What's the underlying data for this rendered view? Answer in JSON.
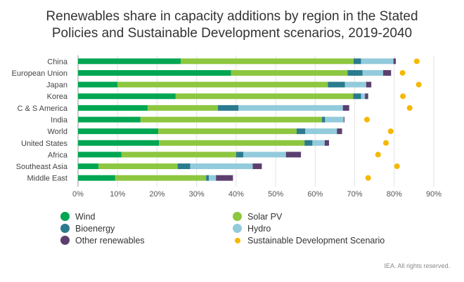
{
  "title_line1": "Renewables share in capacity additions by region in the Stated",
  "title_line2": "Policies and Sustainable Development scenarios, 2019-2040",
  "credit": "IEA. All rights reserved.",
  "colors": {
    "Wind": "#00a651",
    "Solar PV": "#8dc63f",
    "Bioenergy": "#2a7b8e",
    "Hydro": "#92cbdb",
    "Other renewables": "#5c3f6f",
    "Sustainable Development Scenario": "#f5b800"
  },
  "legend": [
    {
      "label": "Wind",
      "color": "#00a651",
      "marker": "circle"
    },
    {
      "label": "Solar PV",
      "color": "#8dc63f",
      "marker": "circle"
    },
    {
      "label": "Bioenergy",
      "color": "#2a7b8e",
      "marker": "circle"
    },
    {
      "label": "Hydro",
      "color": "#92cbdb",
      "marker": "circle"
    },
    {
      "label": "Other renewables",
      "color": "#5c3f6f",
      "marker": "circle"
    },
    {
      "label": "Sustainable Development Scenario",
      "color": "#f5b800",
      "marker": "dot"
    }
  ],
  "chart_data": {
    "type": "bar",
    "orientation": "horizontal",
    "stacked": true,
    "title": "Renewables share in capacity additions by region in the Stated Policies and Sustainable Development scenarios, 2019-2040",
    "categories": [
      "China",
      "European Union",
      "Japan",
      "Korea",
      "C & S America",
      "India",
      "World",
      "United States",
      "Africa",
      "Southeast Asia",
      "Middle East"
    ],
    "series": [
      {
        "name": "Wind",
        "values": [
          26.0,
          38.7,
          10.0,
          24.7,
          17.6,
          15.8,
          20.3,
          20.5,
          11.0,
          5.2,
          9.4
        ]
      },
      {
        "name": "Solar PV",
        "values": [
          43.7,
          29.5,
          53.2,
          44.9,
          17.8,
          45.9,
          35.0,
          36.8,
          29.0,
          20.0,
          23.0
        ]
      },
      {
        "name": "Bioenergy",
        "values": [
          1.9,
          3.8,
          4.3,
          2.0,
          5.2,
          0.8,
          2.2,
          2.0,
          1.8,
          3.2,
          0.7
        ]
      },
      {
        "name": "Hydro",
        "values": [
          8.2,
          5.2,
          5.4,
          1.0,
          26.4,
          4.7,
          8.0,
          3.1,
          10.8,
          15.8,
          1.8
        ]
      },
      {
        "name": "Other renewables",
        "values": [
          0.6,
          2.0,
          1.3,
          0.8,
          1.6,
          0.2,
          1.3,
          1.1,
          3.8,
          2.3,
          4.3
        ]
      }
    ],
    "markers": {
      "name": "Sustainable Development Scenario",
      "values": [
        85.7,
        82.1,
        86.2,
        82.2,
        83.9,
        73.1,
        79.1,
        77.9,
        75.9,
        80.7,
        73.4
      ]
    },
    "xlim": [
      0,
      90
    ],
    "xticks": [
      "0%",
      "10%",
      "20%",
      "30%",
      "40%",
      "50%",
      "60%",
      "70%",
      "80%",
      "90%"
    ],
    "grid": true,
    "legend_position": "bottom"
  }
}
